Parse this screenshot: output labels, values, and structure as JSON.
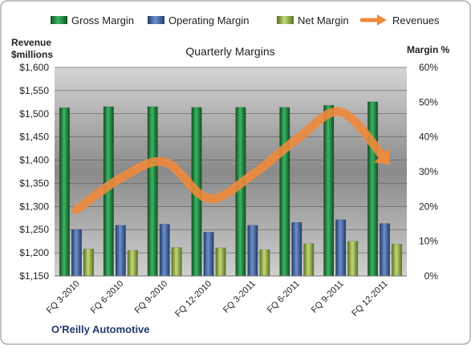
{
  "chart_data": {
    "type": "bar",
    "title": "Quarterly Margins",
    "footer": "O'Reilly Automotive",
    "y_left_label_line1": "Revenue",
    "y_left_label_line2": "$millions",
    "y_right_label": "Margin %",
    "categories": [
      "FQ 3-2010",
      "FQ 6-2010",
      "FQ 9-2010",
      "FQ 12-2010",
      "FQ 3-2011",
      "FQ 6-2011",
      "FQ 9-2011",
      "FQ 12-2011"
    ],
    "y_left_ticks": [
      "$1,150",
      "$1,200",
      "$1,250",
      "$1,300",
      "$1,350",
      "$1,400",
      "$1,450",
      "$1,500",
      "$1,550",
      "$1,600"
    ],
    "y_right_ticks": [
      "0%",
      "10%",
      "20%",
      "30%",
      "40%",
      "50%",
      "60%"
    ],
    "ylim_left": [
      1150,
      1600
    ],
    "ylim_right": [
      0,
      60
    ],
    "grid": true,
    "legend_position": "top",
    "series": [
      {
        "name": "Gross Margin",
        "kind": "bar",
        "axis": "right",
        "color": "#1e7a3a",
        "values": [
          48.4,
          48.7,
          48.7,
          48.5,
          48.5,
          48.5,
          49.1,
          50.1
        ]
      },
      {
        "name": "Operating Margin",
        "kind": "bar",
        "axis": "right",
        "color": "#3d5f99",
        "values": [
          13.4,
          14.6,
          14.9,
          12.6,
          14.6,
          15.4,
          16.2,
          15.1
        ]
      },
      {
        "name": "Net Margin",
        "kind": "bar",
        "axis": "right",
        "color": "#8ea83e",
        "values": [
          7.8,
          7.4,
          8.2,
          8.1,
          7.6,
          9.3,
          10.0,
          9.2
        ]
      },
      {
        "name": "Revenues",
        "kind": "line",
        "axis": "left",
        "color": "#ee8a3c",
        "values": [
          1293,
          1361,
          1396,
          1317,
          1369,
          1445,
          1504,
          1403
        ]
      }
    ]
  }
}
